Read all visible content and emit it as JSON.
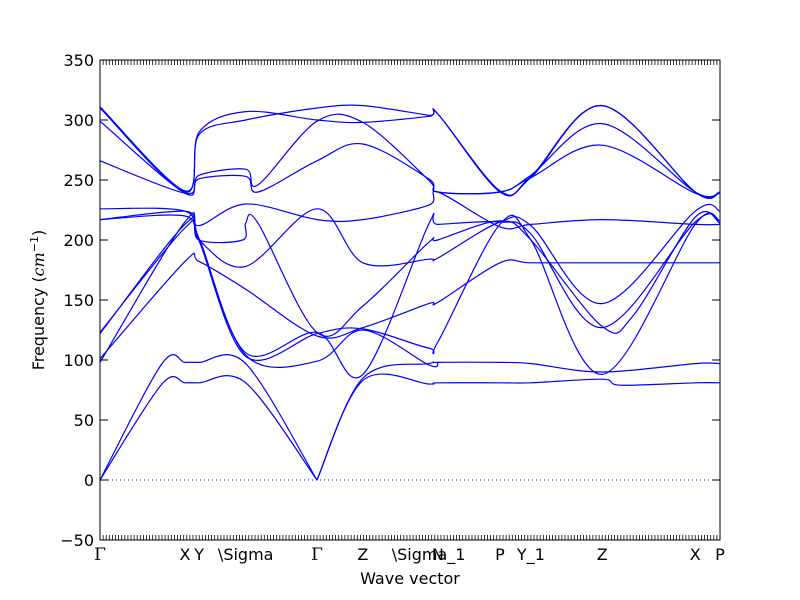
{
  "chart_data": {
    "type": "line",
    "title": "",
    "xlabel": "Wave vector",
    "ylabel": "Frequency (cm⁻¹)",
    "ylabel_parts": {
      "text": "Frequency (",
      "cm": "cm",
      "sup": "−1",
      "close": ")"
    },
    "ylim": [
      -50,
      350
    ],
    "yticks": [
      -50,
      0,
      50,
      100,
      150,
      200,
      250,
      300,
      350
    ],
    "xlim": [
      0,
      10
    ],
    "grid": false,
    "legend": "none",
    "line_color": "#0000ff",
    "zero_line": {
      "y": 0,
      "style": "dotted",
      "color": "#0000ff"
    },
    "high_symmetry_points": [
      {
        "label": "Γ",
        "x": 0
      },
      {
        "label": "X",
        "x": 1.37
      },
      {
        "label": "Y",
        "x": 1.6
      },
      {
        "label": "\\Sigma",
        "x": 2.35
      },
      {
        "label": "Γ",
        "x": 3.5
      },
      {
        "label": "Z",
        "x": 4.24
      },
      {
        "label": "\\Sigma_1",
        "x": 5.3
      },
      {
        "label": "N",
        "x": 5.45
      },
      {
        "label": "P",
        "x": 6.45
      },
      {
        "label": "Y_1",
        "x": 6.95
      },
      {
        "label": "Z",
        "x": 8.1
      },
      {
        "label": "X",
        "x": 9.6
      },
      {
        "label": "P",
        "x": 10.0
      }
    ],
    "series": [
      {
        "x": [
          0,
          1,
          1.37,
          1.6,
          2.35,
          3.5
        ],
        "values": [
          0,
          80,
          81,
          81,
          81,
          0
        ]
      },
      {
        "x": [
          0,
          1,
          1.37,
          1.6,
          2.35,
          3.5
        ],
        "values": [
          0,
          97,
          98,
          98,
          97,
          0
        ]
      },
      {
        "x": [
          3.5,
          4.24,
          5.3,
          5.45,
          6.45,
          6.95,
          8.1,
          8.4,
          9.6,
          10.0
        ],
        "values": [
          0,
          83,
          80,
          81,
          81,
          81,
          84,
          79,
          81,
          81
        ]
      },
      {
        "x": [
          3.5,
          4.24,
          5.3,
          5.45,
          6.45,
          6.95,
          8.1,
          9.6,
          10.0
        ],
        "values": [
          0,
          85,
          97,
          98,
          98,
          97,
          90,
          97,
          97
        ]
      },
      {
        "x": [
          0,
          1.37,
          1.6,
          2.35,
          3.5,
          4.24,
          5.3,
          5.45
        ],
        "values": [
          98,
          215,
          200,
          104,
          99,
          125,
          96,
          98
        ]
      },
      {
        "x": [
          0,
          1.37,
          1.6,
          2.35,
          3.5,
          4.24,
          5.3,
          5.45,
          6.45,
          6.95,
          8.1,
          9.6,
          10.0
        ],
        "values": [
          122,
          213,
          199,
          103,
          122,
          126,
          110,
          115,
          213,
          200,
          88,
          213,
          214
        ]
      },
      {
        "x": [
          0,
          1.37,
          1.6,
          2.35,
          3.5,
          4.24,
          5.3,
          5.45,
          6.45,
          6.95,
          8.1,
          9.6,
          10.0
        ],
        "values": [
          123,
          210,
          201,
          106,
          123,
          88,
          213,
          213,
          215,
          205,
          127,
          215,
          216
        ]
      },
      {
        "x": [
          0,
          1.37,
          1.6,
          2.3,
          2.35,
          2.55,
          3.5,
          4.24,
          5.3,
          5.45,
          6.45,
          6.95,
          8.1,
          8.6,
          9.6,
          10.0
        ],
        "values": [
          217,
          220,
          200,
          200,
          214,
          214,
          123,
          145,
          198,
          200,
          216,
          200,
          128,
          137,
          219,
          214
        ]
      },
      {
        "x": [
          0,
          1.37,
          1.6,
          2.35,
          3.5,
          4.24,
          5.3,
          5.45,
          6.45,
          6.95,
          8.1,
          9.6,
          10.0
        ],
        "values": [
          101,
          182,
          182,
          159,
          120,
          127,
          147,
          148,
          181,
          181,
          181,
          181,
          181
        ]
      },
      {
        "x": [
          0,
          1.37,
          1.6,
          2.35,
          3.5,
          4.24,
          5.3,
          5.45,
          6.45,
          6.95,
          8.1,
          9.6,
          10.0
        ],
        "values": [
          226,
          224,
          200,
          178,
          226,
          181,
          184,
          185,
          215,
          212,
          147,
          224,
          224
        ]
      },
      {
        "x": [
          0,
          1.37,
          1.6,
          2.35,
          3.5,
          4.24,
          5.3,
          5.45,
          6.45,
          6.95,
          8.1,
          9.6,
          10.0
        ],
        "values": [
          217,
          224,
          212,
          230,
          217,
          217,
          229,
          240,
          211,
          213,
          217,
          213,
          213
        ]
      },
      {
        "x": [
          0,
          1.37,
          1.6,
          2.35,
          2.55,
          3.5,
          4.24,
          5.3,
          5.45,
          6.45,
          6.95,
          8.1,
          9.6,
          10.0
        ],
        "values": [
          266,
          239,
          251,
          253,
          240,
          266,
          280,
          251,
          240,
          240,
          252,
          279,
          239,
          239
        ]
      },
      {
        "x": [
          0,
          1.37,
          1.6,
          2.35,
          2.55,
          3.5,
          4.24,
          5.3,
          5.45,
          6.45,
          6.95,
          8.1,
          9.6,
          10.0
        ],
        "values": [
          299,
          239,
          254,
          259,
          246,
          299,
          298,
          250,
          240,
          240,
          254,
          297,
          240,
          240
        ]
      },
      {
        "x": [
          0,
          1.37,
          1.6,
          2.35,
          3.5,
          4.24,
          5.3,
          5.45,
          6.45,
          6.95,
          8.1,
          9.6,
          10.0
        ],
        "values": [
          310,
          240,
          290,
          307,
          300,
          298,
          303,
          305,
          240,
          253,
          312,
          240,
          240
        ]
      },
      {
        "x": [
          0,
          1.37,
          1.6,
          2.35,
          3.5,
          4.24,
          5.3,
          5.45,
          6.45,
          6.95,
          8.1,
          9.6,
          10.0
        ],
        "values": [
          311,
          241,
          288,
          300,
          310,
          312,
          304,
          305,
          241,
          252,
          312,
          240,
          240
        ]
      }
    ]
  }
}
